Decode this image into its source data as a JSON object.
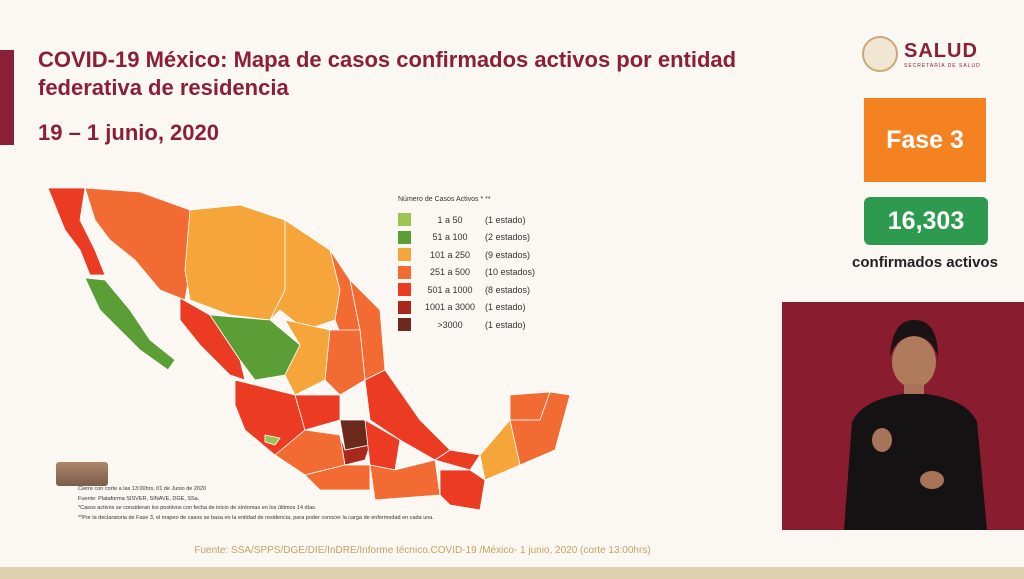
{
  "header": {
    "title": "COVID-19 México: Mapa de casos confirmados activos por entidad federativa de residencia",
    "date": "19 – 1 junio, 2020"
  },
  "logo": {
    "name": "SALUD",
    "subtitle": "SECRETARÍA DE SALUD"
  },
  "phase": {
    "label": "Fase 3",
    "color": "#f58220"
  },
  "active_cases": {
    "value": "16,303",
    "label": "confirmados activos",
    "color": "#2d9a4f"
  },
  "legend": {
    "title": "Número de Casos Activos * **",
    "items": [
      {
        "range": "1 a 50",
        "count": "(1 estado)",
        "color": "#9bc453"
      },
      {
        "range": "51 a 100",
        "count": "(2 estados)",
        "color": "#5a9e35"
      },
      {
        "range": "101 a 250",
        "count": "(9 estados)",
        "color": "#f6a53a"
      },
      {
        "range": "251 a 500",
        "count": "(10 estados)",
        "color": "#f26b32"
      },
      {
        "range": "501 a 1000",
        "count": "(8 estados)",
        "color": "#ec3b23"
      },
      {
        "range": "1001 a 3000",
        "count": "(1 estado)",
        "color": "#a8281e"
      },
      {
        "range": ">3000",
        "count": "(1 estado)",
        "color": "#6b2a1c"
      }
    ]
  },
  "notes": [
    "Cierre con corte a las 13:00hrs, 01 de Junio de 2020",
    "Fuente: Plataforma SISVER, SINAVE, DGE, SSa.",
    "*Casos activos se consideran los positivos con fecha de inicio de síntomas en los últimos 14 días.",
    "**Por la declaratoria de Fase 3, el mapeo de casos se basa en la entidad de residencia, para poder conocer la carga de enfermedad en cada una."
  ],
  "source": "Fuente: SSA/SPPS/DGE/DIE/InDRE/Informe técnico.COVID-19 /México- 1 junio, 2020 (corte 13:00hrs)"
}
